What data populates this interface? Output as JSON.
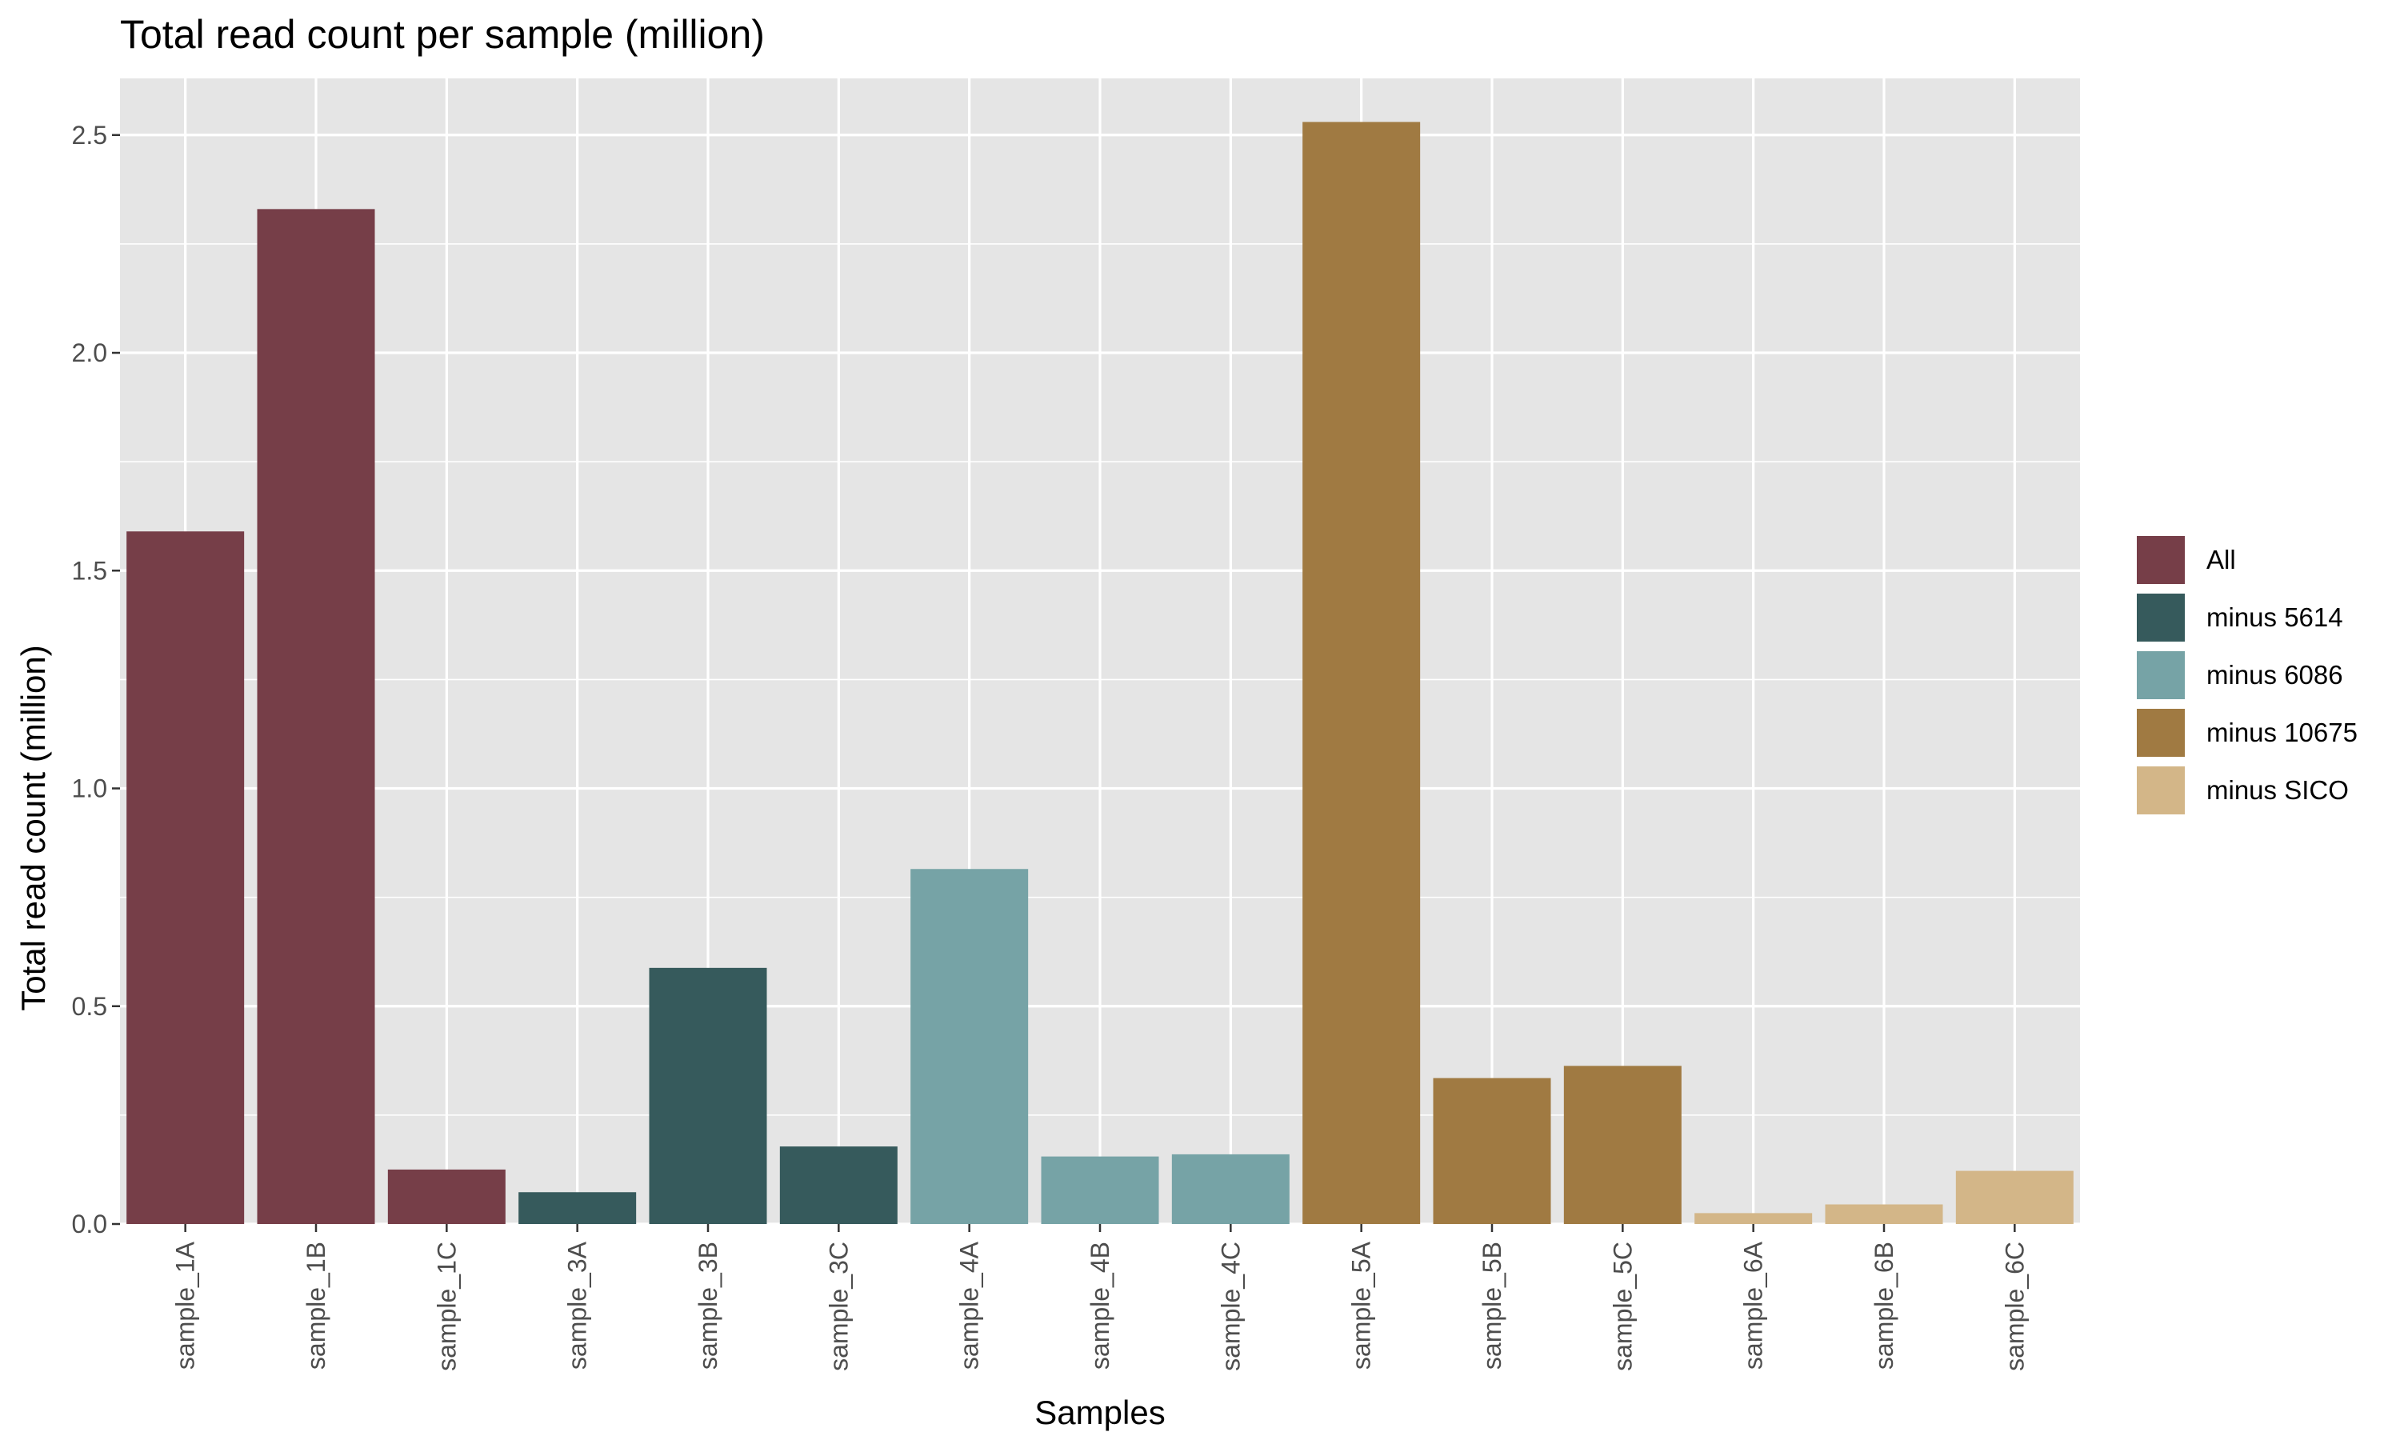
{
  "chart_data": {
    "type": "bar",
    "title": "Total read count per sample (million)",
    "xlabel": "Samples",
    "ylabel": "Total read count (million)",
    "ylim": [
      0,
      2.63
    ],
    "yticks": [
      0.0,
      0.5,
      1.0,
      1.5,
      2.0,
      2.5
    ],
    "ytick_labels": [
      "0.0",
      "0.5",
      "1.0",
      "1.5",
      "2.0",
      "2.5"
    ],
    "grid": true,
    "legend_position": "right",
    "categories": [
      "sample_1A",
      "sample_1B",
      "sample_1C",
      "sample_3A",
      "sample_3B",
      "sample_3C",
      "sample_4A",
      "sample_4B",
      "sample_4C",
      "sample_5A",
      "sample_5B",
      "sample_5C",
      "sample_6A",
      "sample_6B",
      "sample_6C"
    ],
    "values": [
      1.59,
      2.33,
      0.125,
      0.073,
      0.588,
      0.178,
      0.815,
      0.155,
      0.16,
      2.53,
      0.335,
      0.363,
      0.025,
      0.045,
      0.122
    ],
    "groups": [
      "All",
      "All",
      "All",
      "minus 5614",
      "minus 5614",
      "minus 5614",
      "minus 6086",
      "minus 6086",
      "minus 6086",
      "minus 10675",
      "minus 10675",
      "minus 10675",
      "minus SICO",
      "minus SICO",
      "minus SICO"
    ],
    "legend": [
      {
        "name": "All",
        "color": "#763E48"
      },
      {
        "name": "minus 5614",
        "color": "#365A5C"
      },
      {
        "name": "minus 6086",
        "color": "#76A3A6"
      },
      {
        "name": "minus 10675",
        "color": "#A07A42"
      },
      {
        "name": "minus SICO",
        "color": "#D3B688"
      }
    ],
    "panel_background": "#E5E5E5",
    "grid_color": "#FFFFFF"
  }
}
